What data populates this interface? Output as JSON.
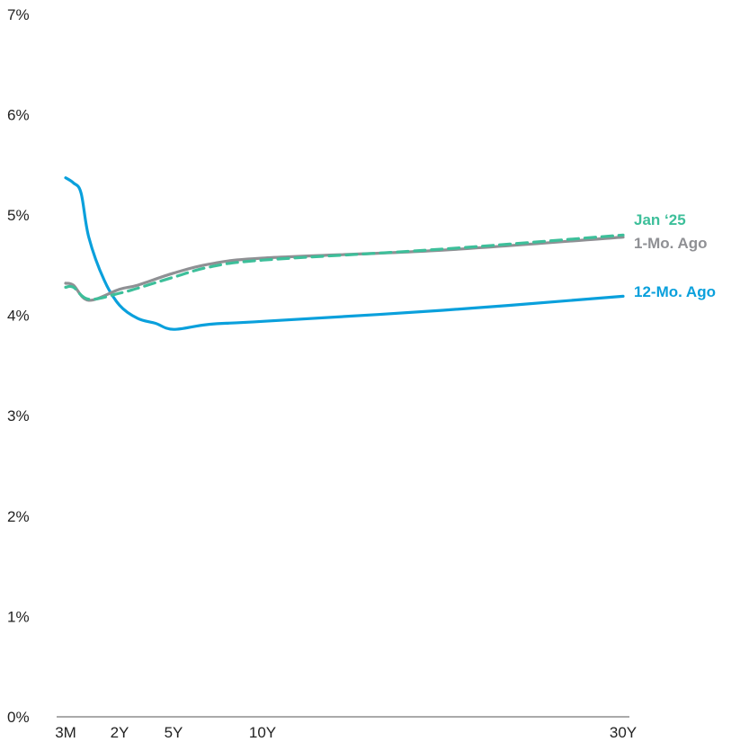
{
  "chart_data": {
    "type": "line",
    "ylim": [
      0,
      7
    ],
    "y_ticks": [
      "0%",
      "1%",
      "2%",
      "3%",
      "4%",
      "5%",
      "6%",
      "7%"
    ],
    "x_ticks": [
      "3M",
      "2Y",
      "5Y",
      "10Y",
      "30Y"
    ],
    "grid": false,
    "series": [
      {
        "name": "Jan ‘25",
        "color": "#3dbf9a",
        "dash": "dashed",
        "points": [
          [
            0.25,
            4.28
          ],
          [
            0.5,
            4.28
          ],
          [
            1,
            4.16
          ],
          [
            2,
            4.22
          ],
          [
            3,
            4.27
          ],
          [
            5,
            4.38
          ],
          [
            7,
            4.48
          ],
          [
            10,
            4.55
          ],
          [
            20,
            4.66
          ],
          [
            30,
            4.8
          ]
        ]
      },
      {
        "name": "1-Mo. Ago",
        "color": "#8f9094",
        "dash": "solid",
        "points": [
          [
            0.25,
            4.32
          ],
          [
            0.5,
            4.3
          ],
          [
            1,
            4.15
          ],
          [
            2,
            4.26
          ],
          [
            3,
            4.3
          ],
          [
            5,
            4.42
          ],
          [
            7,
            4.51
          ],
          [
            10,
            4.57
          ],
          [
            20,
            4.65
          ],
          [
            30,
            4.78
          ]
        ]
      },
      {
        "name": "12-Mo. Ago",
        "color": "#0aa0dc",
        "dash": "solid",
        "points": [
          [
            0.25,
            5.37
          ],
          [
            0.5,
            5.32
          ],
          [
            0.75,
            5.22
          ],
          [
            1,
            4.78
          ],
          [
            1.5,
            4.35
          ],
          [
            2,
            4.1
          ],
          [
            3,
            3.97
          ],
          [
            4,
            3.92
          ],
          [
            5,
            3.86
          ],
          [
            7,
            3.91
          ],
          [
            10,
            3.94
          ],
          [
            20,
            4.05
          ],
          [
            30,
            4.19
          ]
        ]
      }
    ]
  }
}
